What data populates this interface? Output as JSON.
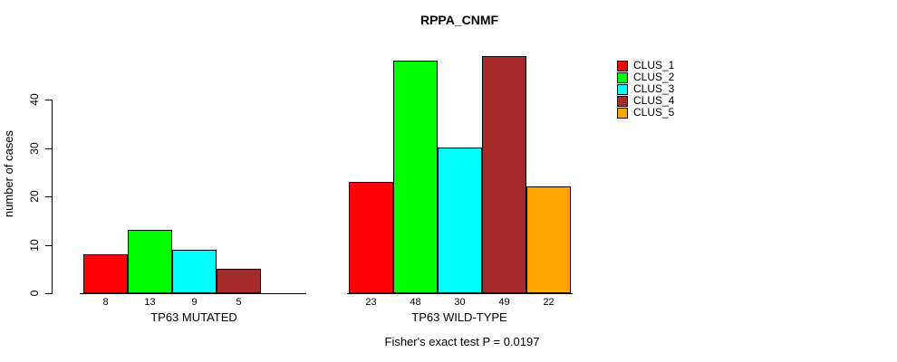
{
  "legend": {
    "entries": [
      {
        "label": "CLUS_1",
        "color": "#FF0000"
      },
      {
        "label": "CLUS_2",
        "color": "#00FF00"
      },
      {
        "label": "CLUS_3",
        "color": "#00FFFF"
      },
      {
        "label": "CLUS_4",
        "color": "#A52A2A"
      },
      {
        "label": "CLUS_5",
        "color": "#FFA500"
      }
    ]
  },
  "chart_data": {
    "type": "bar",
    "title": "RPPA_CNMF",
    "ylabel": "number of cases",
    "yticks": [
      0,
      10,
      20,
      30,
      40
    ],
    "ylim": [
      0,
      50
    ],
    "grid": false,
    "legend_position": "right",
    "categories": [
      "CLUS_1",
      "CLUS_2",
      "CLUS_3",
      "CLUS_4",
      "CLUS_5"
    ],
    "colors": [
      "#FF0000",
      "#00FF00",
      "#00FFFF",
      "#A52A2A",
      "#FFA500"
    ],
    "groups": [
      {
        "label": "TP63 MUTATED",
        "values": [
          8,
          13,
          9,
          5,
          null
        ],
        "bar_labels": [
          "8",
          "13",
          "9",
          "5",
          ""
        ]
      },
      {
        "label": "TP63 WILD-TYPE",
        "values": [
          23,
          48,
          30,
          49,
          22
        ],
        "bar_labels": [
          "23",
          "48",
          "30",
          "49",
          "22"
        ]
      }
    ],
    "annotation": "Fisher's exact test P = 0.0197"
  }
}
